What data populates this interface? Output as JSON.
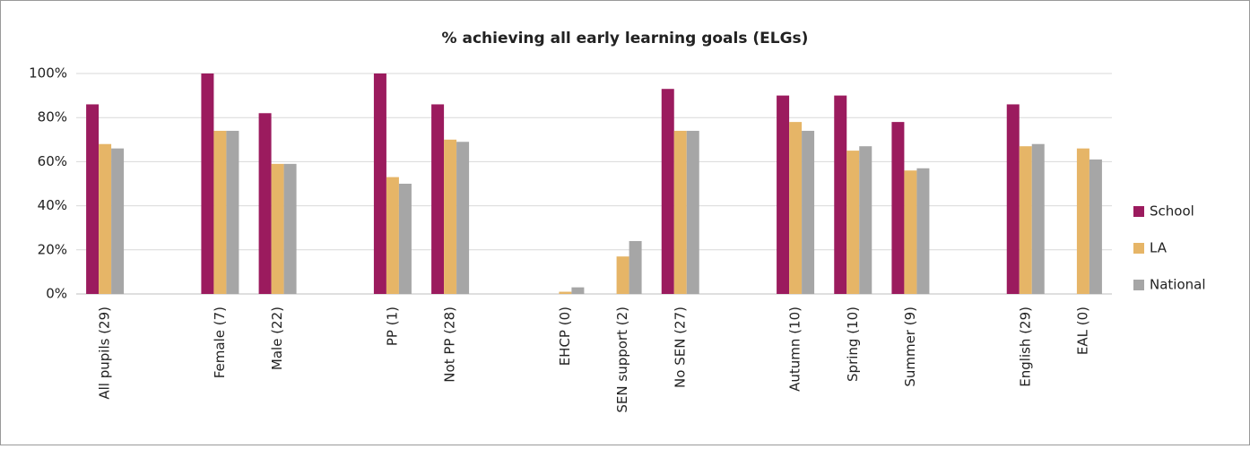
{
  "chart_data": {
    "type": "bar",
    "title": "% achieving all early learning goals (ELGs)",
    "categories": [
      "All pupils (29)",
      null,
      "Female (7)",
      "Male (22)",
      null,
      "PP (1)",
      "Not PP (28)",
      null,
      "EHCP (0)",
      "SEN support (2)",
      "No SEN (27)",
      null,
      "Autumn (10)",
      "Spring (10)",
      "Summer (9)",
      null,
      "English (29)",
      "EAL (0)"
    ],
    "series": [
      {
        "name": "School",
        "color": "#9b1b5e",
        "values": [
          86,
          null,
          100,
          82,
          null,
          100,
          86,
          null,
          null,
          0,
          93,
          null,
          90,
          90,
          78,
          null,
          86,
          null
        ]
      },
      {
        "name": "LA",
        "color": "#e6b567",
        "values": [
          68,
          null,
          74,
          59,
          null,
          53,
          70,
          null,
          1,
          17,
          74,
          null,
          78,
          65,
          56,
          null,
          67,
          66
        ]
      },
      {
        "name": "National",
        "color": "#a6a6a6",
        "values": [
          66,
          null,
          74,
          59,
          null,
          50,
          69,
          null,
          3,
          24,
          74,
          null,
          74,
          67,
          57,
          null,
          68,
          61
        ]
      }
    ],
    "ylim": [
      0,
      100
    ],
    "yticks": [
      {
        "value": 0,
        "label": "0%"
      },
      {
        "value": 20,
        "label": "20%"
      },
      {
        "value": 40,
        "label": "40%"
      },
      {
        "value": 60,
        "label": "60%"
      },
      {
        "value": 80,
        "label": "80%"
      },
      {
        "value": 100,
        "label": "100%"
      }
    ],
    "grid": true,
    "legend": "right"
  }
}
